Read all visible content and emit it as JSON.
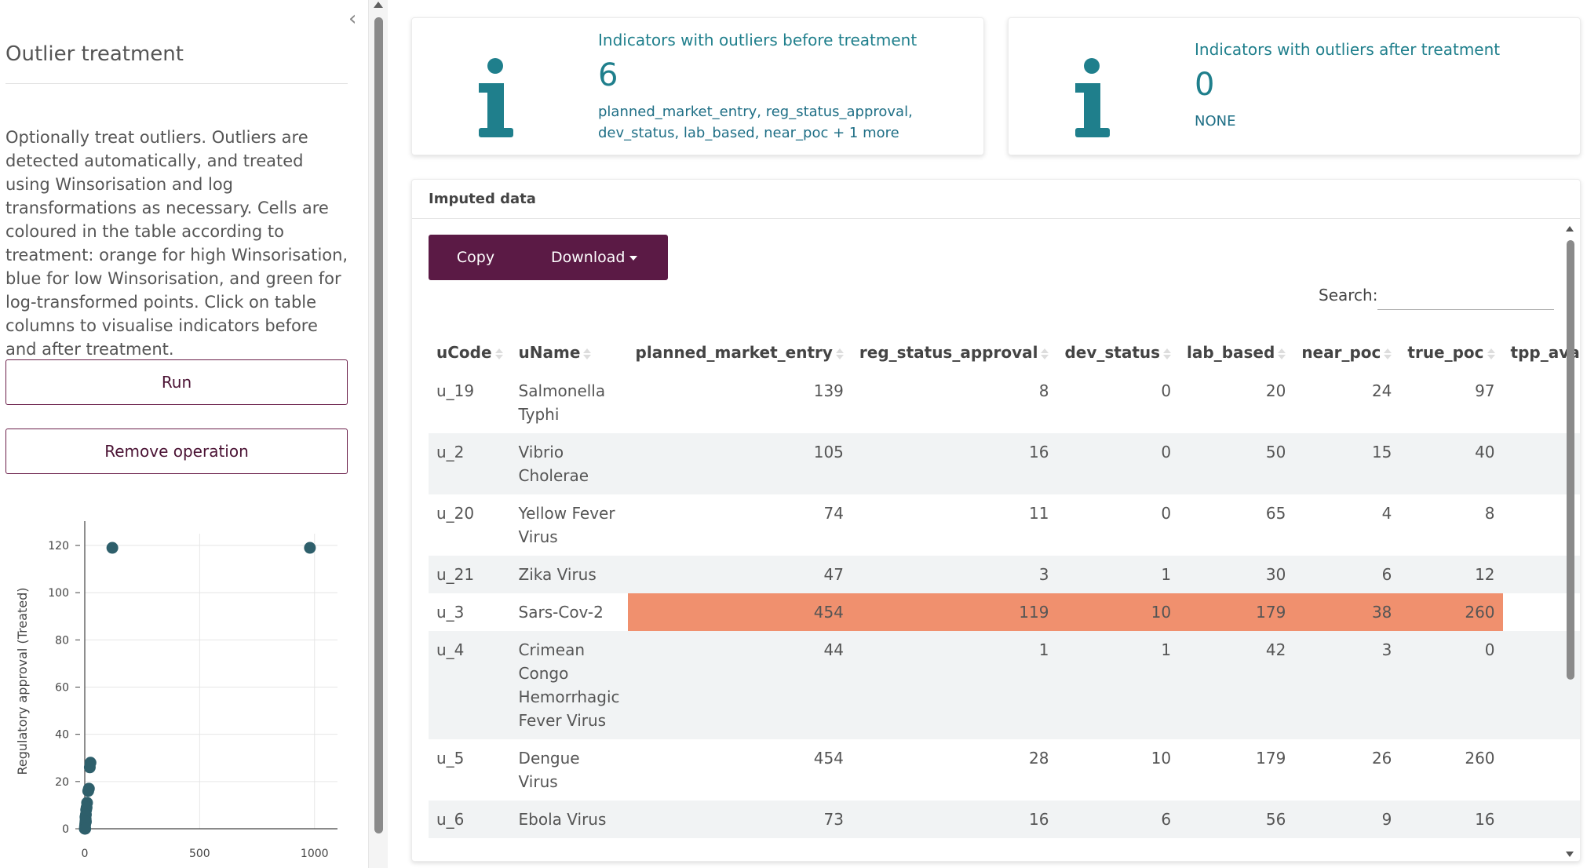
{
  "sidebar": {
    "collapse_icon": "chevron-left-icon",
    "title": "Outlier treatment",
    "description": "Optionally treat outliers. Outliers are detected automatically, and treated using Winsorisation and log transformations as necessary. Cells are coloured in the table according to treatment: orange for high Winsorisation, blue for low Winsorisation, and green for log-transformed points. Click on table columns to visualise indicators before and after treatment.",
    "run_label": "Run",
    "remove_label": "Remove operation"
  },
  "cards": {
    "before": {
      "icon": "info-icon",
      "title": "Indicators with outliers before treatment",
      "value": "6",
      "subtext": "planned_market_entry, reg_status_approval, dev_status, lab_based, near_poc + 1 more"
    },
    "after": {
      "icon": "info-icon",
      "title": "Indicators with outliers after treatment",
      "value": "0",
      "subtext": "NONE"
    }
  },
  "table_card": {
    "header": "Imputed data",
    "copy_label": "Copy",
    "download_label": "Download",
    "search_label": "Search:",
    "search_value": "",
    "columns": [
      "uCode",
      "uName",
      "planned_market_entry",
      "reg_status_approval",
      "dev_status",
      "lab_based",
      "near_poc",
      "true_poc",
      "tpp_available"
    ],
    "rows": [
      {
        "cells": [
          "u_19",
          "Salmonella Typhi",
          "139",
          "8",
          "0",
          "20",
          "24",
          "97",
          ""
        ],
        "highlight": false
      },
      {
        "cells": [
          "u_2",
          "Vibrio Cholerae",
          "105",
          "16",
          "0",
          "50",
          "15",
          "40",
          ""
        ],
        "highlight": false
      },
      {
        "cells": [
          "u_20",
          "Yellow Fever Virus",
          "74",
          "11",
          "0",
          "65",
          "4",
          "8",
          ""
        ],
        "highlight": false
      },
      {
        "cells": [
          "u_21",
          "Zika Virus",
          "47",
          "3",
          "1",
          "30",
          "6",
          "12",
          ""
        ],
        "highlight": false
      },
      {
        "cells": [
          "u_3",
          "Sars-Cov-2",
          "454",
          "119",
          "10",
          "179",
          "38",
          "260",
          ""
        ],
        "highlight": true
      },
      {
        "cells": [
          "u_4",
          "Crimean Congo Hemorrhagic Fever Virus",
          "44",
          "1",
          "1",
          "42",
          "3",
          "0",
          ""
        ],
        "highlight": false
      },
      {
        "cells": [
          "u_5",
          "Dengue Virus",
          "454",
          "28",
          "10",
          "179",
          "26",
          "260",
          ""
        ],
        "highlight": false
      },
      {
        "cells": [
          "u_6",
          "Ebola Virus",
          "73",
          "16",
          "6",
          "56",
          "9",
          "16",
          ""
        ],
        "highlight": false
      }
    ],
    "highlight_color": "#f0906e"
  },
  "colors": {
    "accent": "#5b1a45",
    "info": "#1f7f8c",
    "marker": "#2e5f6b"
  },
  "chart_data": {
    "type": "scatter",
    "ylabel": "Regulatory approval (Treated)",
    "xlabel": "",
    "xlim": [
      0,
      1100
    ],
    "ylim": [
      0,
      125
    ],
    "xticks": [
      0,
      500,
      1000
    ],
    "yticks": [
      0,
      20,
      40,
      60,
      80,
      100,
      120
    ],
    "grid": true,
    "points": [
      {
        "x": 120,
        "y": 119
      },
      {
        "x": 980,
        "y": 119
      },
      {
        "x": 25,
        "y": 28
      },
      {
        "x": 22,
        "y": 26
      },
      {
        "x": 18,
        "y": 17
      },
      {
        "x": 15,
        "y": 16
      },
      {
        "x": 10,
        "y": 11
      },
      {
        "x": 8,
        "y": 9
      },
      {
        "x": 6,
        "y": 8
      },
      {
        "x": 5,
        "y": 6
      },
      {
        "x": 4,
        "y": 4
      },
      {
        "x": 3,
        "y": 3
      },
      {
        "x": 2,
        "y": 2
      },
      {
        "x": 1,
        "y": 1
      },
      {
        "x": 0,
        "y": 0
      },
      {
        "x": 3,
        "y": 5
      },
      {
        "x": 5,
        "y": 3
      },
      {
        "x": 2,
        "y": 0
      }
    ]
  }
}
